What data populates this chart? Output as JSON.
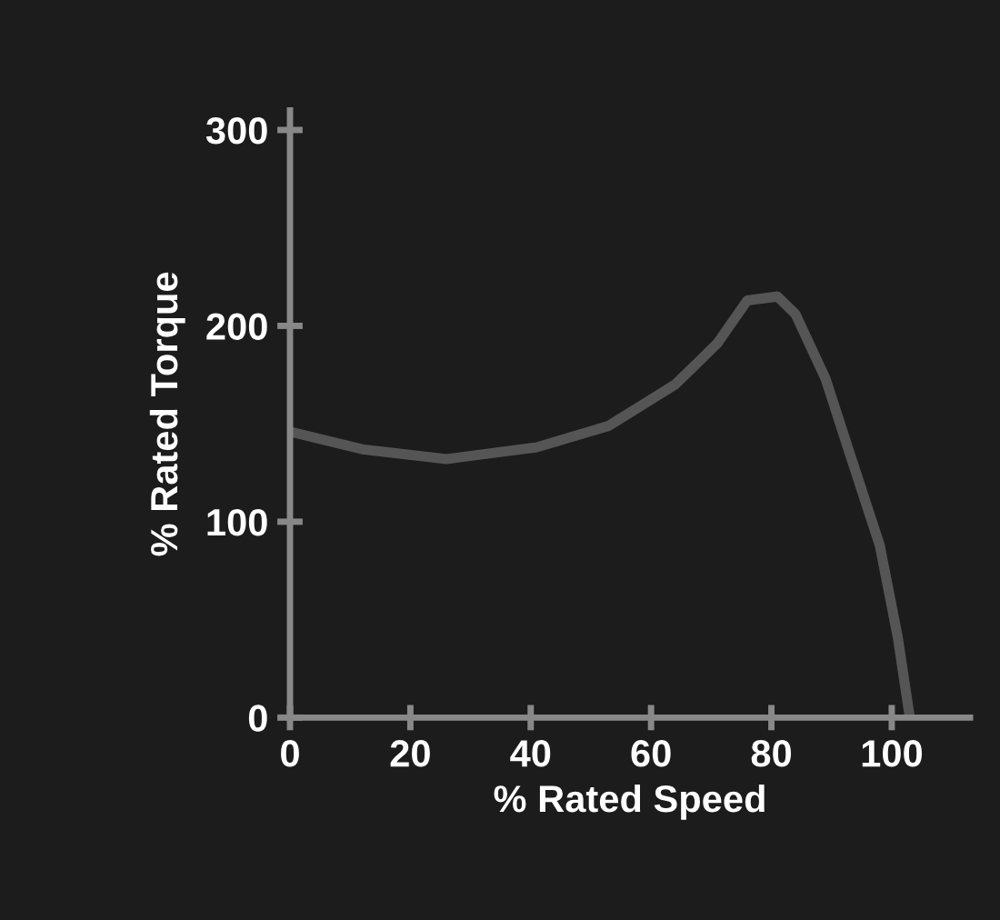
{
  "chart_data": {
    "type": "line",
    "xlabel": "% Rated Speed",
    "ylabel": "% Rated Torque",
    "x": [
      0,
      12,
      26,
      41,
      53,
      64,
      71,
      76,
      81,
      84,
      89,
      93,
      98,
      101,
      103
    ],
    "series": [
      {
        "color": "#555555",
        "values": [
          146,
          137,
          132,
          138,
          149,
          170,
          191,
          213,
          215,
          206,
          173,
          135,
          88,
          41,
          0
        ]
      }
    ],
    "xlim": [
      0,
      113
    ],
    "ylim": [
      0,
      310
    ],
    "xticks": [
      0,
      20,
      40,
      60,
      80,
      100
    ],
    "yticks": [
      0,
      100,
      200,
      300
    ],
    "grid": false,
    "legend": false
  }
}
